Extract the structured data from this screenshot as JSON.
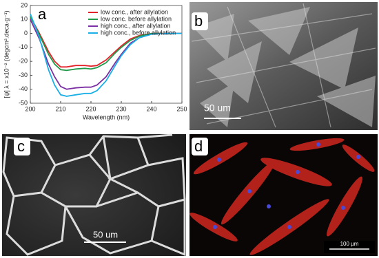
{
  "chart_data": {
    "type": "line",
    "xlabel": "Wavelength (nm)",
    "ylabel": "[ψ] λ = x10⁻² (degcm².deca·g⁻¹)",
    "x": [
      200,
      203,
      206,
      208,
      210,
      212,
      215,
      218,
      220,
      222,
      225,
      228,
      230,
      233,
      236,
      240,
      245,
      250
    ],
    "series": [
      {
        "name": "low conc., after allylation",
        "color": "#e3222a",
        "values": [
          12,
          0,
          -13,
          -20,
          -24,
          -24,
          -23,
          -23,
          -23.5,
          -23,
          -19,
          -13,
          -9,
          -4,
          -1.5,
          0,
          0,
          0
        ]
      },
      {
        "name": "low conc. before allylation",
        "color": "#1f9a4a",
        "values": [
          12,
          -1,
          -15,
          -22,
          -26,
          -26.5,
          -25.5,
          -25,
          -25.5,
          -24.5,
          -21,
          -14,
          -10,
          -5,
          -2,
          0,
          0,
          0
        ]
      },
      {
        "name": "high conc., after allylation",
        "color": "#7a2fa3",
        "values": [
          10,
          -4,
          -22,
          -31,
          -38,
          -40,
          -39,
          -38.5,
          -38.5,
          -37,
          -31,
          -21,
          -15,
          -7,
          -3,
          -0.5,
          0,
          0
        ]
      },
      {
        "name": "high conc., before allylation",
        "color": "#1ab0e6",
        "values": [
          14,
          -3,
          -26,
          -37,
          -44,
          -45,
          -44,
          -43,
          -43,
          -41,
          -34,
          -23,
          -16,
          -8,
          -3,
          -0.5,
          0,
          0
        ]
      }
    ],
    "xlim": [
      200,
      250
    ],
    "xticks": [
      200,
      210,
      220,
      230,
      240,
      250
    ],
    "ylim": [
      -50,
      20
    ],
    "yticks": [
      20,
      10,
      0,
      -10,
      -20,
      -30,
      -40,
      -50
    ],
    "legend": "top-right"
  },
  "panels": {
    "a": "a",
    "b": "b",
    "c": "c",
    "d": "d",
    "b_scale": "50 um",
    "c_scale": "50 um",
    "d_scale": "100 µm"
  }
}
